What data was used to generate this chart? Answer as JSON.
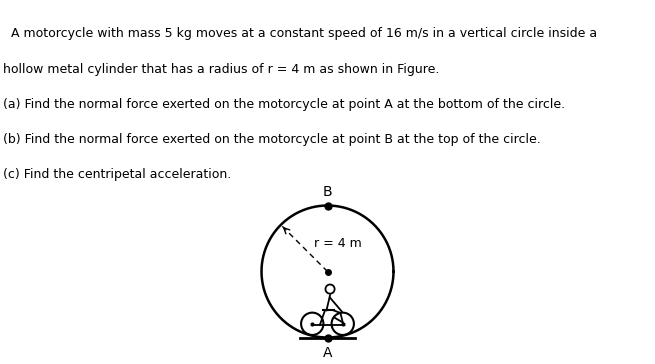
{
  "background_color": "#ffffff",
  "header_bar_color": "#1a1a1a",
  "text_color": "#000000",
  "line1": "  A motorcycle with mass 5 kg moves at a constant speed of 16 m/s in a vertical circle inside a",
  "line2": "hollow metal cylinder that has a radius of r = 4 m as shown in Figure.",
  "line3": "(a) Find the normal force exerted on the motorcycle at point A at the bottom of the circle.",
  "line4": "(b) Find the normal force exerted on the motorcycle at point B at the top of the circle.",
  "line5": "(c) Find the centripetal acceleration.",
  "point_A_label": "A",
  "point_B_label": "B",
  "radius_label": "r = 4 m",
  "fig_width": 6.55,
  "fig_height": 3.64,
  "dpi": 100,
  "fontsize_text": 9.0,
  "fontsize_label": 10.0
}
